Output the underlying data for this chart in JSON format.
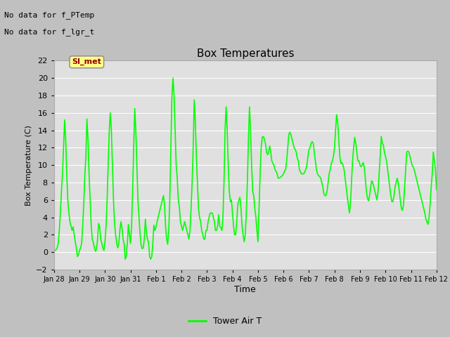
{
  "title": "Box Temperatures",
  "ylabel": "Box Temperature (C)",
  "xlabel": "Time",
  "annotation_line1": "No data for f_PTemp",
  "annotation_line2": "No data for f_lgr_t",
  "legend_label": "Tower Air T",
  "legend_color": "#00ff00",
  "line_color": "#00ff00",
  "fig_bg_color": "#c8c8c8",
  "plot_bg_color": "#e0e0e0",
  "ylim": [
    -2,
    22
  ],
  "yticks": [
    -2,
    0,
    2,
    4,
    6,
    8,
    10,
    12,
    14,
    16,
    18,
    20,
    22
  ],
  "si_met_label": "SI_met",
  "si_met_bg": "#ffff88",
  "si_met_text_color": "#990000",
  "x_tick_labels": [
    "Jan 28",
    "Jan 29",
    "Jan 30",
    "Jan 31",
    "Feb 1",
    "Feb 2",
    "Feb 3",
    "Feb 4",
    "Feb 5",
    "Feb 6",
    "Feb 7",
    "Feb 8",
    "Feb 9",
    "Feb 10",
    "Feb 11",
    "Feb 12"
  ],
  "x_tick_positions": [
    0,
    24,
    48,
    72,
    96,
    120,
    144,
    168,
    192,
    216,
    240,
    264,
    288,
    312,
    336,
    360
  ],
  "xlim": [
    0,
    360
  ],
  "data_hours": [
    0,
    1,
    2,
    3,
    4,
    5,
    6,
    7,
    8,
    9,
    10,
    11,
    12,
    13,
    14,
    15,
    16,
    17,
    18,
    19,
    20,
    21,
    22,
    23,
    24,
    25,
    26,
    27,
    28,
    29,
    30,
    31,
    32,
    33,
    34,
    35,
    36,
    37,
    38,
    39,
    40,
    41,
    42,
    43,
    44,
    45,
    46,
    47,
    48,
    49,
    50,
    51,
    52,
    53,
    54,
    55,
    56,
    57,
    58,
    59,
    60,
    61,
    62,
    63,
    64,
    65,
    66,
    67,
    68,
    69,
    70,
    71,
    72,
    73,
    74,
    75,
    76,
    77,
    78,
    79,
    80,
    81,
    82,
    83,
    84,
    85,
    86,
    87,
    88,
    89,
    90,
    91,
    92,
    93,
    94,
    95,
    96,
    97,
    98,
    99,
    100,
    101,
    102,
    103,
    104,
    105,
    106,
    107,
    108,
    109,
    110,
    111,
    112,
    113,
    114,
    115,
    116,
    117,
    118,
    119,
    120,
    121,
    122,
    123,
    124,
    125,
    126,
    127,
    128,
    129,
    130,
    131,
    132,
    133,
    134,
    135,
    136,
    137,
    138,
    139,
    140,
    141,
    142,
    143,
    144,
    145,
    146,
    147,
    148,
    149,
    150,
    151,
    152,
    153,
    154,
    155,
    156,
    157,
    158,
    159,
    160,
    161,
    162,
    163,
    164,
    165,
    166,
    167,
    168,
    169,
    170,
    171,
    172,
    173,
    174,
    175,
    176,
    177,
    178,
    179,
    180,
    181,
    182,
    183,
    184,
    185,
    186,
    187,
    188,
    189,
    190,
    191,
    192,
    193,
    194,
    195,
    196,
    197,
    198,
    199,
    200,
    201,
    202,
    203,
    204,
    205,
    206,
    207,
    208,
    209,
    210,
    211,
    212,
    213,
    214,
    215,
    216,
    217,
    218,
    219,
    220,
    221,
    222,
    223,
    224,
    225,
    226,
    227,
    228,
    229,
    230,
    231,
    232,
    233,
    234,
    235,
    236,
    237,
    238,
    239,
    240,
    241,
    242,
    243,
    244,
    245,
    246,
    247,
    248,
    249,
    250,
    251,
    252,
    253,
    254,
    255,
    256,
    257,
    258,
    259,
    260,
    261,
    262,
    263,
    264,
    265,
    266,
    267,
    268,
    269,
    270,
    271,
    272,
    273,
    274,
    275,
    276,
    277,
    278,
    279,
    280,
    281,
    282,
    283,
    284,
    285,
    286,
    287,
    288,
    289,
    290,
    291,
    292,
    293,
    294,
    295,
    296,
    297,
    298,
    299,
    300,
    301,
    302,
    303,
    304,
    305,
    306,
    307,
    308,
    309,
    310,
    311,
    312,
    313,
    314,
    315,
    316,
    317,
    318,
    319,
    320,
    321,
    322,
    323,
    324,
    325,
    326,
    327,
    328,
    329,
    330,
    331,
    332,
    333,
    334,
    335,
    336,
    337,
    338,
    339,
    340,
    341,
    342,
    343,
    344,
    345,
    346,
    347,
    348,
    349,
    350,
    351,
    352,
    353,
    354,
    355,
    356,
    357,
    358,
    359,
    360
  ],
  "data_temps": [
    0.2,
    0.2,
    0.3,
    0.5,
    1.0,
    2.5,
    4.5,
    7.0,
    9.0,
    12.0,
    15.2,
    13.0,
    9.0,
    6.0,
    4.5,
    3.5,
    3.0,
    2.5,
    2.9,
    2.0,
    1.2,
    0.5,
    -0.5,
    -0.3,
    0.2,
    0.5,
    1.0,
    3.0,
    5.5,
    8.8,
    11.0,
    15.3,
    13.0,
    9.0,
    6.0,
    3.2,
    1.5,
    1.1,
    0.5,
    0.1,
    0.3,
    1.5,
    3.3,
    2.9,
    1.5,
    1.0,
    0.5,
    0.2,
    1.2,
    3.0,
    6.0,
    10.0,
    14.0,
    16.0,
    14.0,
    10.0,
    6.0,
    3.3,
    2.0,
    1.0,
    0.5,
    1.0,
    2.5,
    3.5,
    2.8,
    1.5,
    1.0,
    -0.8,
    -0.5,
    1.0,
    3.2,
    2.0,
    1.0,
    3.0,
    7.0,
    12.0,
    16.5,
    14.0,
    10.0,
    6.0,
    4.0,
    2.1,
    0.8,
    0.4,
    0.5,
    1.5,
    3.8,
    2.2,
    1.5,
    1.1,
    -0.5,
    -0.8,
    -0.5,
    1.0,
    3.1,
    2.5,
    2.9,
    3.5,
    4.0,
    4.5,
    5.0,
    5.5,
    6.0,
    6.5,
    5.5,
    3.0,
    1.5,
    0.9,
    2.5,
    6.0,
    12.0,
    18.0,
    20.0,
    18.0,
    14.0,
    10.0,
    8.5,
    6.0,
    5.2,
    3.5,
    3.0,
    2.5,
    3.0,
    3.5,
    3.0,
    2.5,
    2.0,
    1.5,
    2.5,
    5.0,
    8.0,
    12.0,
    17.5,
    15.0,
    11.0,
    8.0,
    5.0,
    4.0,
    3.5,
    2.5,
    2.0,
    1.5,
    1.5,
    2.5,
    2.5,
    3.5,
    4.0,
    4.5,
    4.5,
    4.5,
    4.0,
    3.5,
    2.5,
    2.5,
    3.0,
    4.3,
    3.0,
    2.8,
    2.5,
    4.0,
    8.0,
    14.0,
    16.7,
    14.0,
    10.0,
    7.0,
    5.8,
    6.0,
    4.5,
    3.0,
    2.0,
    2.0,
    3.5,
    5.5,
    6.0,
    6.3,
    5.0,
    3.0,
    2.0,
    1.2,
    2.0,
    4.5,
    8.0,
    13.0,
    16.7,
    14.0,
    10.0,
    7.0,
    6.5,
    5.0,
    4.0,
    2.5,
    1.2,
    5.0,
    9.0,
    12.0,
    13.2,
    13.3,
    13.0,
    12.5,
    11.5,
    11.2,
    11.5,
    12.2,
    11.5,
    10.5,
    10.2,
    10.0,
    9.5,
    9.3,
    9.0,
    8.5,
    8.5,
    8.6,
    8.7,
    8.8,
    9.0,
    9.3,
    9.5,
    10.5,
    12.0,
    13.5,
    13.8,
    13.5,
    13.0,
    12.5,
    12.0,
    11.8,
    11.5,
    10.8,
    10.5,
    9.5,
    9.2,
    9.0,
    9.0,
    9.0,
    9.2,
    9.5,
    10.0,
    11.0,
    11.8,
    12.0,
    12.5,
    12.7,
    12.5,
    11.5,
    10.5,
    9.5,
    9.0,
    8.8,
    8.7,
    8.5,
    8.0,
    7.5,
    6.7,
    6.5,
    6.5,
    7.0,
    8.0,
    9.0,
    9.5,
    10.2,
    10.5,
    11.0,
    12.0,
    14.0,
    15.8,
    15.0,
    13.0,
    11.0,
    10.2,
    10.3,
    10.0,
    9.5,
    8.5,
    7.5,
    6.4,
    5.5,
    4.5,
    5.5,
    8.0,
    10.5,
    12.0,
    13.2,
    12.5,
    11.5,
    10.5,
    10.5,
    10.0,
    9.8,
    10.0,
    10.3,
    9.8,
    8.5,
    7.0,
    6.2,
    5.9,
    6.5,
    7.5,
    8.2,
    8.0,
    7.5,
    7.0,
    6.5,
    6.0,
    7.0,
    9.0,
    11.0,
    13.3,
    12.5,
    12.3,
    11.5,
    11.0,
    10.5,
    9.5,
    8.5,
    7.5,
    6.5,
    5.8,
    5.8,
    6.5,
    7.5,
    8.0,
    8.5,
    8.0,
    7.0,
    5.9,
    5.0,
    4.8,
    5.5,
    7.5,
    9.5,
    11.5,
    11.6,
    11.5,
    11.0,
    10.5,
    10.0,
    9.8,
    9.5,
    9.0,
    8.5,
    8.0,
    7.5,
    7.0,
    6.5,
    6.0,
    5.5,
    5.0,
    4.5,
    3.8,
    3.5,
    3.2,
    4.0,
    5.5,
    7.5,
    9.0,
    11.5,
    10.5,
    9.5,
    7.2
  ]
}
